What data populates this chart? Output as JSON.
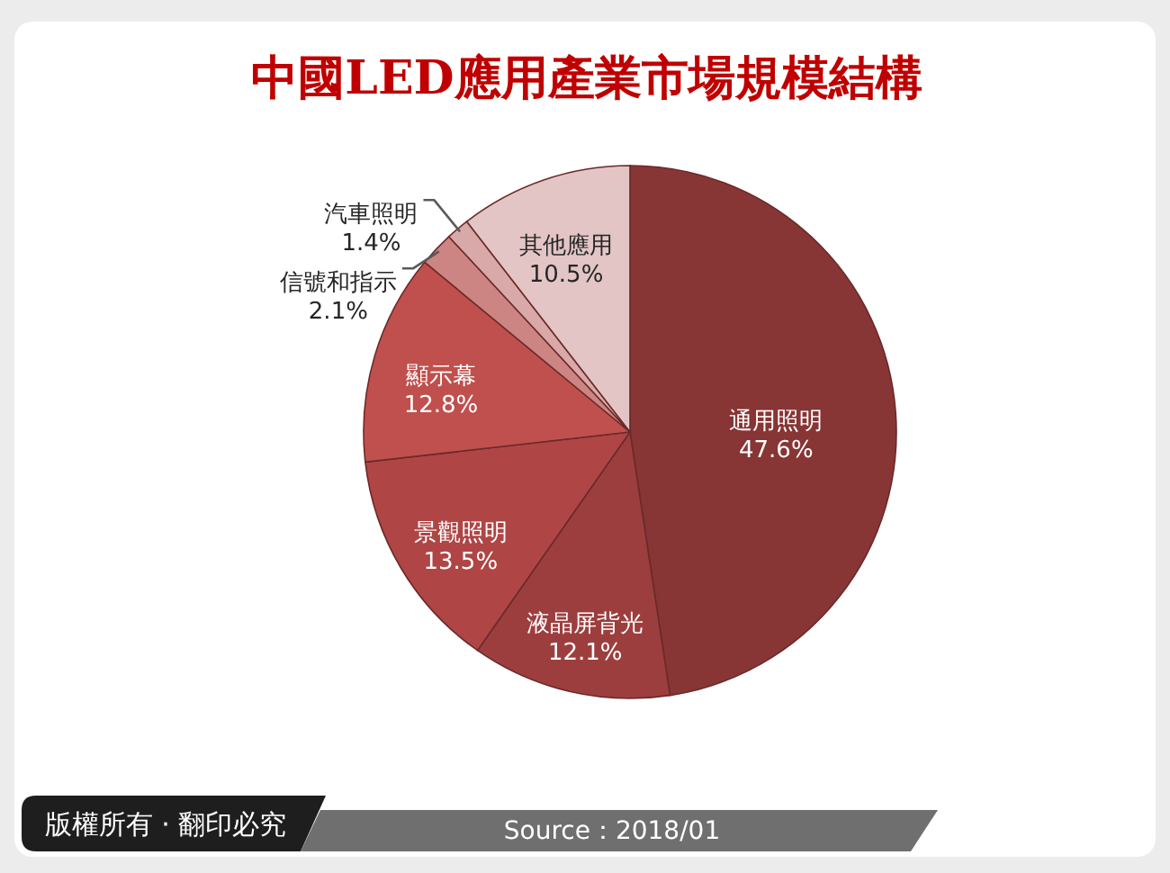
{
  "chart_data": {
    "type": "pie",
    "title": "中國LED應用產業市場規模結構",
    "categories": [
      "通用照明",
      "液晶屏背光",
      "景觀照明",
      "顯示幕",
      "信號和指示",
      "汽車照明",
      "其他應用"
    ],
    "values": [
      47.6,
      12.1,
      13.5,
      12.8,
      2.1,
      1.4,
      10.5
    ],
    "value_labels": [
      "47.6%",
      "12.1%",
      "13.5%",
      "12.8%",
      "2.1%",
      "1.4%",
      "10.5%"
    ],
    "colors": [
      "#873535",
      "#9d3e3e",
      "#af4545",
      "#c0504d",
      "#cd8584",
      "#d9a9a9",
      "#e3c5c5"
    ],
    "annotations": [
      "版權所有 · 翻印必究",
      "Source：2018/01"
    ]
  }
}
